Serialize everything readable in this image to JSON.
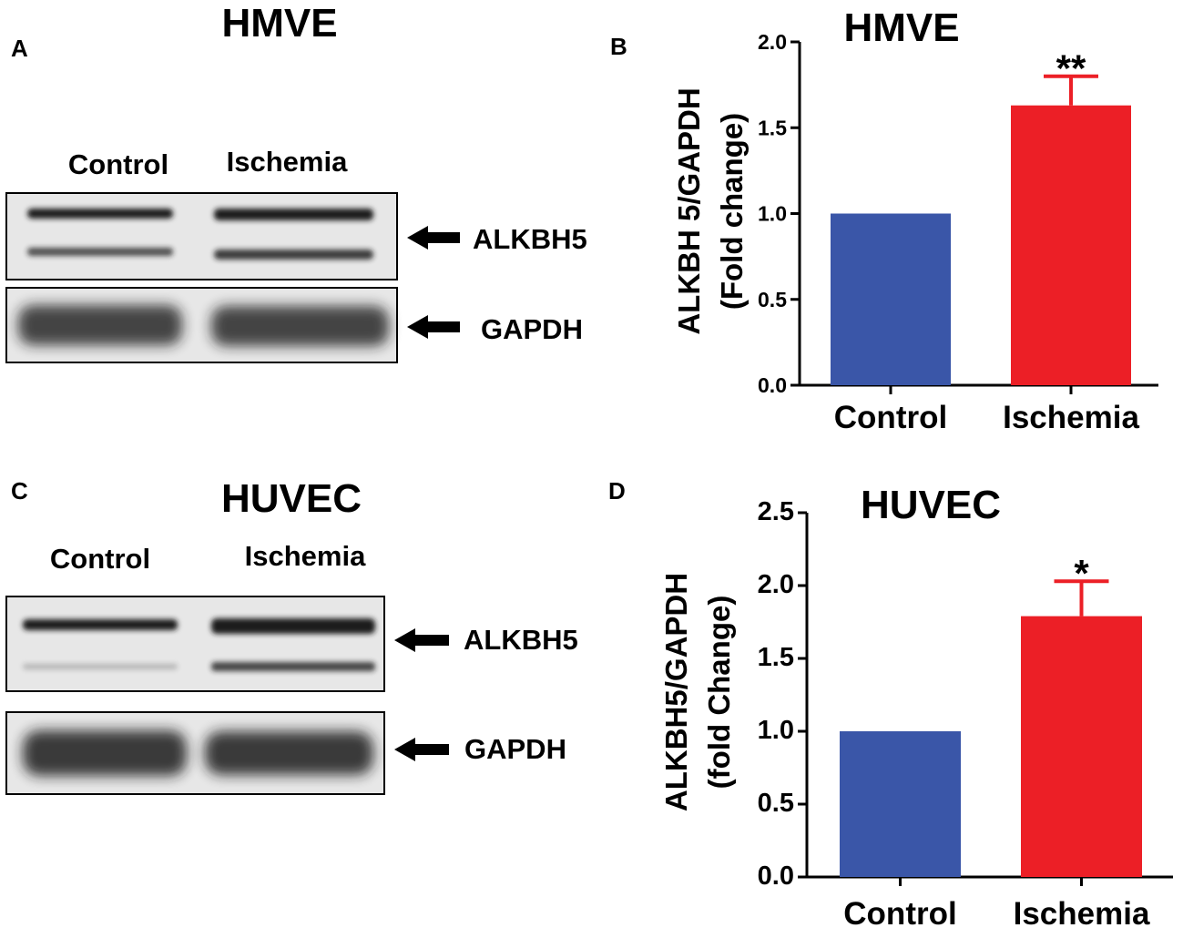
{
  "colors": {
    "control": "#3a56a8",
    "ischemia": "#ec1f26",
    "error_bar": "#ec1f26",
    "blot_band": "#1e1e1e",
    "blot_background": "#e7e7e7"
  },
  "panels": {
    "A": {
      "letter": "A",
      "title": "HMVE",
      "lanes": [
        "Control",
        "Ischemia"
      ],
      "bands": [
        "ALKBH5",
        "GAPDH"
      ]
    },
    "C": {
      "letter": "C",
      "title": "HUVEC",
      "lanes": [
        "Control",
        "Ischemia"
      ],
      "bands": [
        "ALKBH5",
        "GAPDH"
      ]
    }
  },
  "chart_data": [
    {
      "panel": "B",
      "type": "bar",
      "title": "HMVE",
      "categories": [
        "Control",
        "Ischemia"
      ],
      "values": [
        1.0,
        1.63
      ],
      "error": [
        0,
        0.17
      ],
      "significance": [
        "",
        "**"
      ],
      "ylabel_line1": "ALKBH 5/GAPDH",
      "ylabel_line2": "(Fold change)",
      "xlabel": "",
      "ylim": [
        0,
        2.0
      ],
      "yticks": [
        "0.0",
        "0.5",
        "1.0",
        "1.5",
        "2.0"
      ],
      "grid": false,
      "legend": "none"
    },
    {
      "panel": "D",
      "type": "bar",
      "title": "HUVEC",
      "categories": [
        "Control",
        "Ischemia"
      ],
      "values": [
        1.0,
        1.79
      ],
      "error": [
        0,
        0.24
      ],
      "significance": [
        "",
        "*"
      ],
      "ylabel_line1": "ALKBH5/GAPDH",
      "ylabel_line2": "(fold Change)",
      "xlabel": "",
      "ylim": [
        0,
        2.5
      ],
      "yticks": [
        "0.0",
        "0.5",
        "1.0",
        "1.5",
        "2.0",
        "2.5"
      ],
      "grid": false,
      "legend": "none"
    }
  ],
  "letters": {
    "B": "B",
    "D": "D"
  }
}
